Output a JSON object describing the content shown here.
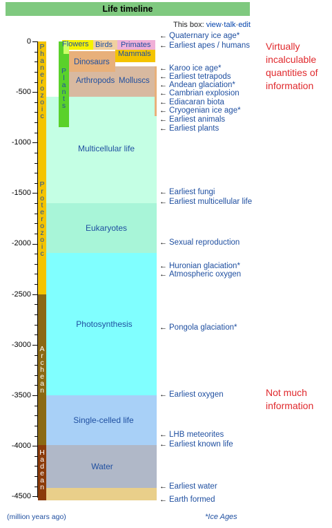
{
  "title": "Life timeline",
  "box_links": {
    "prefix": "This box:",
    "view": "view",
    "talk": "talk",
    "edit": "edit",
    "sep": "·"
  },
  "axis": {
    "ticks": [
      "0",
      "-500",
      "-1000",
      "-1500",
      "-2000",
      "-2500",
      "-3000",
      "-3500",
      "-4000",
      "-4500"
    ],
    "unit_note": "(million years ago)",
    "footer_right": "*Ice Ages"
  },
  "eons": {
    "phanerozoic": "Phanerozoic",
    "proterozoic": "Proterozoic",
    "archean": "Archean",
    "hadean": "Hadean"
  },
  "plants_label": "Plants",
  "groups": {
    "flowers": "Flowers",
    "birds": "Birds",
    "primates": "Primates",
    "mammals": "Mammals",
    "dinosaurs": "Dinosaurs",
    "arthropods": "Arthropods",
    "molluscs": "Molluscs"
  },
  "bands": {
    "multicellular": "Multicellular life",
    "eukaryotes": "Eukaryotes",
    "photosynthesis": "Photosynthesis",
    "single_celled": "Single-celled life",
    "water": "Water"
  },
  "events": [
    {
      "arrow": "←",
      "text": "Quaternary ice age*"
    },
    {
      "arrow": "←",
      "text": "Earliest apes / humans"
    },
    {
      "arrow": "←",
      "text": "Karoo ice age*"
    },
    {
      "arrow": "←",
      "text": "Earliest tetrapods"
    },
    {
      "arrow": "←",
      "text": "Andean glaciation*"
    },
    {
      "arrow": "←",
      "text": "Cambrian explosion"
    },
    {
      "arrow": "←",
      "text": "Ediacaran biota"
    },
    {
      "arrow": "←",
      "text": "Cryogenian ice age*"
    },
    {
      "arrow": "←",
      "text": "Earliest animals"
    },
    {
      "arrow": "←",
      "text": "Earliest plants"
    },
    {
      "arrow": "←",
      "text": "Earliest fungi"
    },
    {
      "arrow": "←",
      "text": "Earliest multicellular life"
    },
    {
      "arrow": "←",
      "text": "Sexual reproduction"
    },
    {
      "arrow": "←",
      "text": "Huronian glaciation*"
    },
    {
      "arrow": "←",
      "text": "Atmospheric oxygen"
    },
    {
      "arrow": "←",
      "text": "Pongola glaciation*"
    },
    {
      "arrow": "←",
      "text": "Earliest oxygen"
    },
    {
      "arrow": "←",
      "text": "LHB meteorites"
    },
    {
      "arrow": "←",
      "text": "Earliest known life"
    },
    {
      "arrow": "←",
      "text": "Earliest water"
    },
    {
      "arrow": "←",
      "text": "Earth formed"
    }
  ],
  "notes": {
    "top": "Virtually incalculable quantities of information",
    "bottom": "Not much information"
  },
  "colors": {
    "title_bg": "#7fc97f",
    "link": "#0645ad",
    "text_blue": "#1f4fa0",
    "note_red": "#e0282c",
    "phanerozoic": "#f4c400",
    "archean": "#8b6914",
    "hadean": "#8b3b0a",
    "plants": "#5ad12a",
    "water": "#b0b8c8",
    "earth_formed": "#e9cf8a",
    "photosynthesis": "#80ffff",
    "eukaryotes": "#a8f5d8",
    "multicellular": "#c4ffe4",
    "single_celled": "#a8d0f7"
  }
}
